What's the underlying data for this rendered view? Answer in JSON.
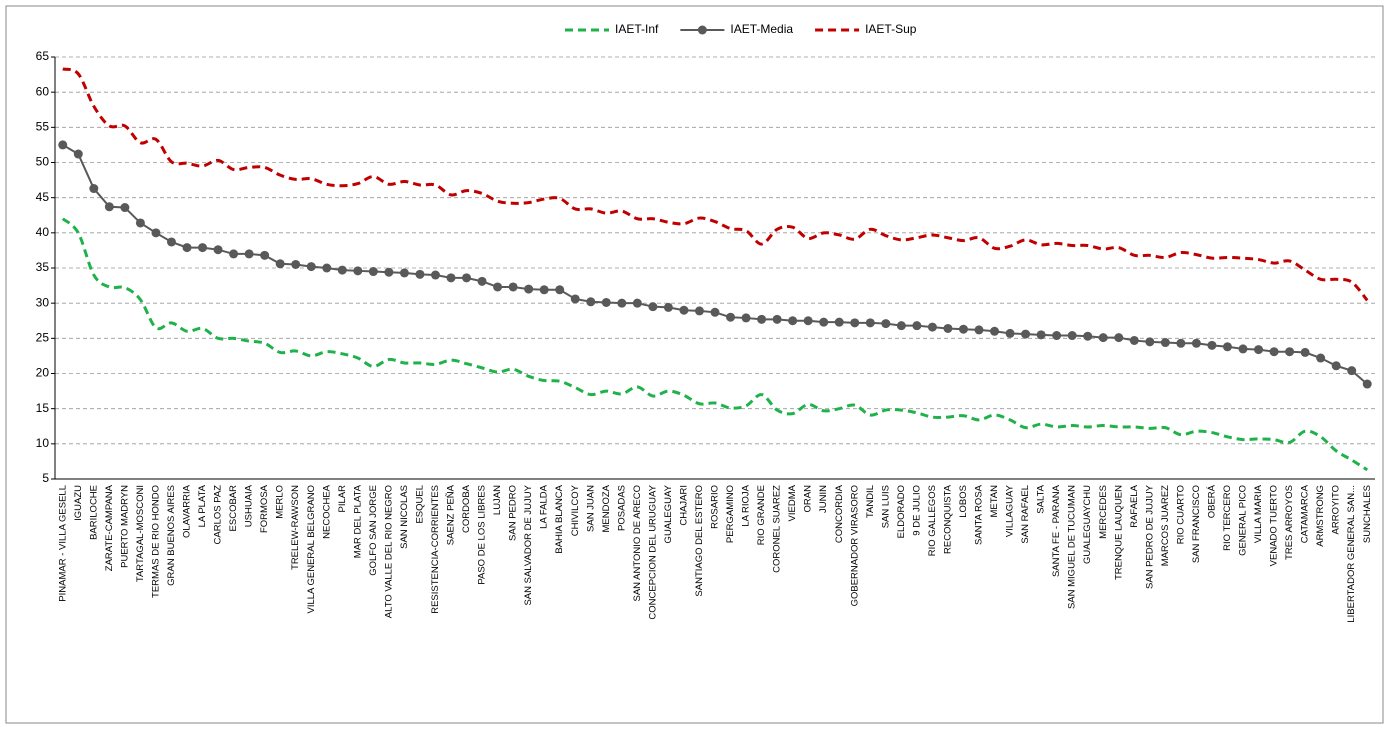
{
  "chart_data": {
    "type": "line",
    "categories": [
      "PINAMAR - VILLA GESELL",
      "IGUAZU",
      "BARILOCHE",
      "ZARATE-CAMPANA",
      "PUERTO MADRYN",
      "TARTAGAL-MOSCONI",
      "TERMAS DE RIO HONDO",
      "GRAN BUENOS AIRES",
      "OLAVARRIA",
      "LA PLATA",
      "CARLOS PAZ",
      "ESCOBAR",
      "USHUAIA",
      "FORMOSA",
      "MERLO",
      "TRELEW-RAWSON",
      "VILLA GENERAL BELGRANO",
      "NECOCHEA",
      "PILAR",
      "MAR DEL PLATA",
      "GOLFO SAN JORGE",
      "ALTO VALLE DEL RIO NEGRO",
      "SAN NICOLAS",
      "ESQUEL",
      "RESISTENCIA-CORRIENTES",
      "SAENZ PEÑA",
      "CORDOBA",
      "PASO DE LOS LIBRES",
      "LUJAN",
      "SAN PEDRO",
      "SAN SALVADOR DE JUJUY",
      "LA FALDA",
      "BAHIA BLANCA",
      "CHIVILCOY",
      "SAN JUAN",
      "MENDOZA",
      "POSADAS",
      "SAN ANTONIO DE ARECO",
      "CONCEPCION DEL URUGUAY",
      "GUALEGUAY",
      "CHAJARI",
      "SANTIAGO DEL ESTERO",
      "ROSARIO",
      "PERGAMINO",
      "LA RIOJA",
      "RIO GRANDE",
      "CORONEL SUAREZ",
      "VIEDMA",
      "ORAN",
      "JUNIN",
      "CONCORDIA",
      "GOBERNADOR VIRASORO",
      "TANDIL",
      "SAN LUIS",
      "ELDORADO",
      "9 DE JULIO",
      "RIO GALLEGOS",
      "RECONQUISTA",
      "LOBOS",
      "SANTA ROSA",
      "METAN",
      "VILLAGUAY",
      "SAN RAFAEL",
      "SALTA",
      "SANTA FE - PARANA",
      "SAN MIGUEL DE TUCUMAN",
      "GUALEGUAYCHU",
      "MERCEDES",
      "TRENQUE LAUQUEN",
      "RAFAELA",
      "SAN PEDRO DE JUJUY",
      "MARCOS JUAREZ",
      "RIO CUARTO",
      "SAN FRANCISCO",
      "OBERÁ",
      "RIO TERCERO",
      "GENERAL PICO",
      "VILLA MARIA",
      "VENADO TUERTO",
      "TRES ARROYOS",
      "CATAMARCA",
      "ARMSTRONG",
      "ARROYITO",
      "LIBERTADOR GENERAL SAN...",
      "SUNCHALES"
    ],
    "series": [
      {
        "name": "IAET-Inf",
        "color": "#1fb24a",
        "dashed": true,
        "markers": false,
        "values": [
          42,
          40,
          34,
          32.3,
          32.2,
          30.5,
          26.5,
          27.2,
          26,
          26.4,
          25,
          25,
          24.6,
          24.3,
          23,
          23.2,
          22.5,
          23.1,
          22.8,
          22.2,
          21,
          22,
          21.5,
          21.5,
          21.3,
          21.9,
          21.4,
          20.8,
          20.2,
          20.6,
          19.6,
          19,
          18.9,
          18,
          17,
          17.5,
          17.1,
          18.1,
          16.8,
          17.5,
          16.9,
          15.7,
          15.8,
          15.1,
          15.4,
          17,
          14.8,
          14.3,
          15.6,
          14.7,
          15,
          15.5,
          14.1,
          14.8,
          14.8,
          14.4,
          13.8,
          13.8,
          14,
          13.4,
          14.1,
          13.4,
          12.3,
          12.8,
          12.4,
          12.6,
          12.4,
          12.6,
          12.4,
          12.4,
          12.2,
          12.3,
          11.3,
          11.8,
          11.6,
          11,
          10.6,
          10.7,
          10.6,
          10.2,
          11.8,
          11,
          9,
          7.7,
          6.3
        ]
      },
      {
        "name": "IAET-Media",
        "color": "#595959",
        "dashed": false,
        "markers": true,
        "values": [
          52.5,
          51.2,
          46.3,
          43.7,
          43.6,
          41.4,
          40,
          38.7,
          37.9,
          37.9,
          37.6,
          37,
          37,
          36.8,
          35.6,
          35.5,
          35.2,
          35,
          34.7,
          34.6,
          34.5,
          34.4,
          34.3,
          34.1,
          34,
          33.6,
          33.6,
          33.1,
          32.3,
          32.3,
          32,
          31.9,
          31.9,
          30.6,
          30.2,
          30.1,
          30,
          30,
          29.5,
          29.4,
          29,
          28.9,
          28.7,
          28,
          27.9,
          27.7,
          27.7,
          27.5,
          27.5,
          27.3,
          27.3,
          27.2,
          27.2,
          27.1,
          26.8,
          26.8,
          26.6,
          26.4,
          26.3,
          26.2,
          26,
          25.7,
          25.6,
          25.5,
          25.4,
          25.4,
          25.3,
          25.1,
          25.1,
          24.7,
          24.5,
          24.4,
          24.3,
          24.3,
          24,
          23.8,
          23.5,
          23.4,
          23.1,
          23.1,
          23,
          22.2,
          21.1,
          20.4,
          18.5
        ]
      },
      {
        "name": "IAET-Sup",
        "color": "#c00000",
        "dashed": true,
        "markers": false,
        "values": [
          63.3,
          62.6,
          58,
          55.2,
          55.2,
          52.8,
          53.3,
          50.1,
          49.9,
          49.5,
          50.3,
          49,
          49.3,
          49.3,
          48.2,
          47.6,
          47.7,
          46.9,
          46.7,
          47,
          48,
          46.9,
          47.3,
          46.8,
          46.8,
          45.4,
          46,
          45.6,
          44.5,
          44.2,
          44.3,
          44.8,
          44.9,
          43.4,
          43.4,
          42.8,
          43.1,
          42,
          42,
          41.5,
          41.3,
          42.1,
          41.6,
          40.6,
          40.3,
          38.4,
          40.5,
          40.8,
          39.2,
          40,
          39.7,
          39.1,
          40.5,
          39.6,
          39,
          39.3,
          39.7,
          39.3,
          38.9,
          39.3,
          37.8,
          38.1,
          39,
          38.3,
          38.5,
          38.2,
          38.2,
          37.7,
          37.9,
          36.8,
          36.8,
          36.5,
          37.2,
          36.9,
          36.4,
          36.5,
          36.4,
          36.2,
          35.7,
          36,
          34.7,
          33.4,
          33.4,
          33,
          30.4
        ]
      }
    ],
    "ylim": [
      5,
      65
    ],
    "yticks": [
      5,
      10,
      15,
      20,
      25,
      30,
      35,
      40,
      45,
      50,
      55,
      60,
      65
    ],
    "grid": true,
    "legend": "top"
  }
}
